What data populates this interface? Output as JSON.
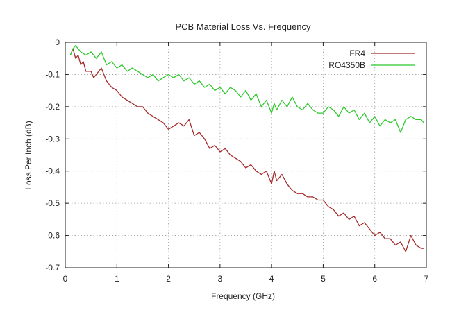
{
  "chart_data": {
    "type": "line",
    "title": "PCB Material Loss Vs. Frequency",
    "xlabel": "Frequency (GHz)",
    "ylabel": "Loss Per Inch (dB)",
    "xlim": [
      0,
      7
    ],
    "ylim": [
      -0.7,
      0
    ],
    "xticks": [
      0,
      1,
      2,
      3,
      4,
      5,
      6,
      7
    ],
    "yticks": [
      0,
      -0.1,
      -0.2,
      -0.3,
      -0.4,
      -0.5,
      -0.6,
      -0.7
    ],
    "xtick_labels": [
      "0",
      "1",
      "2",
      "3",
      "4",
      "5",
      "6",
      "7"
    ],
    "ytick_labels": [
      "0",
      "-0.1",
      "-0.2",
      "-0.3",
      "-0.4",
      "-0.5",
      "-0.6",
      "-0.7"
    ],
    "grid": true,
    "legend_position": "top-right",
    "series": [
      {
        "name": "FR4",
        "color": "#a52a2a",
        "x": [
          0.1,
          0.15,
          0.2,
          0.25,
          0.3,
          0.35,
          0.4,
          0.5,
          0.55,
          0.6,
          0.7,
          0.8,
          0.85,
          0.9,
          1.0,
          1.1,
          1.2,
          1.3,
          1.4,
          1.5,
          1.6,
          1.7,
          1.8,
          1.9,
          2.0,
          2.1,
          2.2,
          2.3,
          2.4,
          2.5,
          2.6,
          2.7,
          2.8,
          2.9,
          3.0,
          3.1,
          3.2,
          3.3,
          3.4,
          3.5,
          3.6,
          3.7,
          3.8,
          3.9,
          4.0,
          4.05,
          4.1,
          4.2,
          4.3,
          4.4,
          4.5,
          4.6,
          4.7,
          4.8,
          4.9,
          5.0,
          5.1,
          5.2,
          5.3,
          5.4,
          5.5,
          5.6,
          5.7,
          5.8,
          5.9,
          6.0,
          6.1,
          6.2,
          6.3,
          6.4,
          6.5,
          6.6,
          6.7,
          6.8,
          6.9,
          6.95
        ],
        "y": [
          -0.04,
          -0.02,
          -0.05,
          -0.04,
          -0.07,
          -0.06,
          -0.09,
          -0.09,
          -0.11,
          -0.1,
          -0.08,
          -0.12,
          -0.13,
          -0.14,
          -0.15,
          -0.17,
          -0.18,
          -0.19,
          -0.2,
          -0.2,
          -0.22,
          -0.23,
          -0.24,
          -0.25,
          -0.27,
          -0.26,
          -0.25,
          -0.26,
          -0.24,
          -0.29,
          -0.28,
          -0.3,
          -0.33,
          -0.32,
          -0.34,
          -0.33,
          -0.35,
          -0.36,
          -0.37,
          -0.39,
          -0.38,
          -0.4,
          -0.41,
          -0.4,
          -0.44,
          -0.4,
          -0.43,
          -0.41,
          -0.44,
          -0.46,
          -0.47,
          -0.47,
          -0.48,
          -0.48,
          -0.49,
          -0.49,
          -0.51,
          -0.52,
          -0.54,
          -0.53,
          -0.55,
          -0.54,
          -0.57,
          -0.56,
          -0.58,
          -0.6,
          -0.59,
          -0.61,
          -0.61,
          -0.63,
          -0.62,
          -0.65,
          -0.6,
          -0.63,
          -0.64,
          -0.64
        ]
      },
      {
        "name": "RO4350B",
        "color": "#2ec82e",
        "x": [
          0.1,
          0.15,
          0.2,
          0.25,
          0.3,
          0.4,
          0.5,
          0.6,
          0.7,
          0.8,
          0.9,
          1.0,
          1.1,
          1.2,
          1.3,
          1.4,
          1.5,
          1.6,
          1.7,
          1.8,
          1.9,
          2.0,
          2.1,
          2.2,
          2.3,
          2.4,
          2.5,
          2.6,
          2.7,
          2.8,
          2.9,
          3.0,
          3.1,
          3.2,
          3.3,
          3.4,
          3.5,
          3.6,
          3.7,
          3.8,
          3.9,
          4.0,
          4.05,
          4.1,
          4.2,
          4.3,
          4.4,
          4.5,
          4.6,
          4.7,
          4.8,
          4.9,
          5.0,
          5.1,
          5.2,
          5.3,
          5.4,
          5.5,
          5.6,
          5.7,
          5.8,
          5.9,
          6.0,
          6.1,
          6.2,
          6.3,
          6.4,
          6.5,
          6.6,
          6.7,
          6.8,
          6.9,
          6.95
        ],
        "y": [
          -0.04,
          -0.02,
          -0.01,
          -0.02,
          -0.03,
          -0.04,
          -0.03,
          -0.05,
          -0.03,
          -0.07,
          -0.06,
          -0.08,
          -0.07,
          -0.09,
          -0.08,
          -0.09,
          -0.1,
          -0.11,
          -0.1,
          -0.12,
          -0.11,
          -0.1,
          -0.11,
          -0.1,
          -0.12,
          -0.11,
          -0.13,
          -0.12,
          -0.14,
          -0.13,
          -0.15,
          -0.14,
          -0.16,
          -0.14,
          -0.15,
          -0.17,
          -0.15,
          -0.18,
          -0.16,
          -0.2,
          -0.18,
          -0.22,
          -0.19,
          -0.21,
          -0.18,
          -0.2,
          -0.17,
          -0.2,
          -0.21,
          -0.19,
          -0.21,
          -0.22,
          -0.22,
          -0.2,
          -0.21,
          -0.23,
          -0.2,
          -0.22,
          -0.21,
          -0.24,
          -0.22,
          -0.25,
          -0.23,
          -0.26,
          -0.24,
          -0.25,
          -0.24,
          -0.28,
          -0.24,
          -0.23,
          -0.24,
          -0.24,
          -0.25
        ]
      }
    ]
  }
}
